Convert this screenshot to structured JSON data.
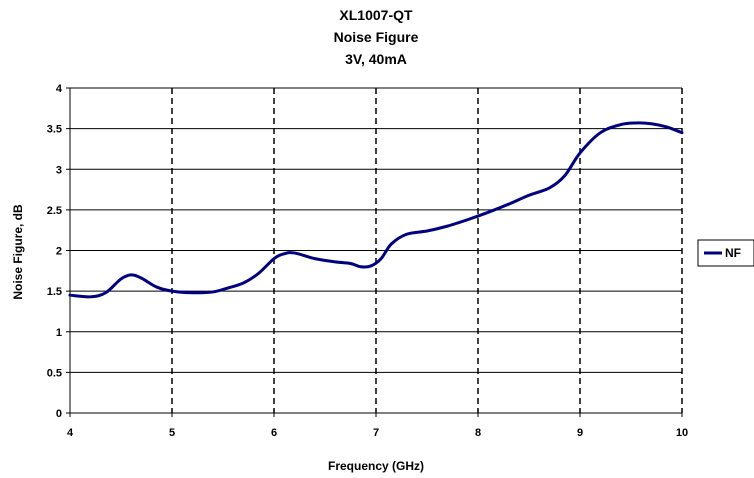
{
  "chart_data": {
    "type": "line",
    "title": [
      "XL1007-QT",
      "Noise Figure",
      "3V, 40mA"
    ],
    "xlabel": "Frequency (GHz)",
    "ylabel": "Noise Figure, dB",
    "xlim": [
      4,
      10
    ],
    "ylim": [
      0,
      4
    ],
    "x_ticks": [
      4,
      5,
      6,
      7,
      8,
      9,
      10
    ],
    "y_ticks": [
      0,
      0.5,
      1,
      1.5,
      2,
      2.5,
      3,
      3.5,
      4
    ],
    "x_tick_labels": [
      "4",
      "5",
      "6",
      "7",
      "8",
      "9",
      "10"
    ],
    "y_tick_labels": [
      "0",
      "0.5",
      "1",
      "1.5",
      "2",
      "2.5",
      "3",
      "3.5",
      "4"
    ],
    "grid": {
      "horizontal": "solid",
      "vertical": "dashed"
    },
    "legend_position": "right",
    "series": [
      {
        "name": "NF",
        "color": "#000080",
        "x": [
          4.0,
          4.2,
          4.35,
          4.5,
          4.6,
          4.7,
          4.85,
          5.0,
          5.2,
          5.4,
          5.55,
          5.7,
          5.85,
          6.0,
          6.1,
          6.2,
          6.4,
          6.6,
          6.75,
          6.85,
          6.95,
          7.05,
          7.15,
          7.3,
          7.5,
          7.7,
          7.9,
          8.1,
          8.3,
          8.5,
          8.7,
          8.85,
          9.0,
          9.2,
          9.4,
          9.55,
          9.7,
          9.85,
          10.0
        ],
        "y": [
          1.45,
          1.43,
          1.48,
          1.65,
          1.7,
          1.66,
          1.55,
          1.5,
          1.48,
          1.49,
          1.54,
          1.6,
          1.72,
          1.9,
          1.96,
          1.97,
          1.9,
          1.86,
          1.84,
          1.8,
          1.81,
          1.9,
          2.08,
          2.2,
          2.24,
          2.3,
          2.38,
          2.47,
          2.57,
          2.68,
          2.77,
          2.92,
          3.2,
          3.45,
          3.55,
          3.57,
          3.56,
          3.52,
          3.45
        ]
      }
    ]
  }
}
